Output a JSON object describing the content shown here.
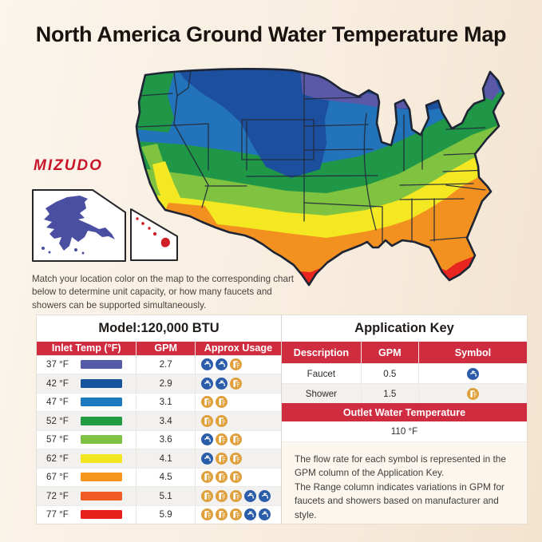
{
  "title": "North America Ground Water Temperature Map",
  "brand": "MIZUDO",
  "intro": "Match your location color on the map to the corresponding chart below to determine unit capacity, or how many faucets and showers can be supported simultaneously.",
  "map": {
    "bands": {
      "purple": "#5b58a8",
      "navy": "#1c4f9e",
      "blue": "#2273ba",
      "green": "#1f9747",
      "lightgreen": "#80c341",
      "yellow": "#f3e822",
      "orange": "#f39120",
      "red": "#e8251f"
    },
    "alaska_fill": "#4a4fa2",
    "hawaii_fill": "#cf2027"
  },
  "colors": {
    "header_red": "#d02c3f",
    "faucet_blue": "#2a5caa",
    "shower_orange": "#dfa03c"
  },
  "capacity_table": {
    "title": "Model:120,000 BTU",
    "columns": [
      "Inlet Temp (°F)",
      "GPM",
      "Approx Usage"
    ],
    "rows": [
      {
        "temp": "37 °F",
        "swatch": "#555ba6",
        "gpm": "2.7",
        "usage": [
          "faucet",
          "faucet",
          "shower"
        ]
      },
      {
        "temp": "42 °F",
        "swatch": "#14549c",
        "gpm": "2.9",
        "usage": [
          "faucet",
          "faucet",
          "shower"
        ]
      },
      {
        "temp": "47 °F",
        "swatch": "#1b79c0",
        "gpm": "3.1",
        "usage": [
          "shower",
          "shower"
        ]
      },
      {
        "temp": "52 °F",
        "swatch": "#219b41",
        "gpm": "3.4",
        "usage": [
          "shower",
          "shower"
        ]
      },
      {
        "temp": "57 °F",
        "swatch": "#7dc242",
        "gpm": "3.6",
        "usage": [
          "faucet",
          "shower",
          "shower"
        ]
      },
      {
        "temp": "62 °F",
        "swatch": "#f2e620",
        "gpm": "4.1",
        "usage": [
          "faucet",
          "shower",
          "shower"
        ]
      },
      {
        "temp": "67 °F",
        "swatch": "#f7941d",
        "gpm": "4.5",
        "usage": [
          "shower",
          "shower",
          "shower"
        ]
      },
      {
        "temp": "72 °F",
        "swatch": "#ee5b24",
        "gpm": "5.1",
        "usage": [
          "shower",
          "shower",
          "shower",
          "faucet",
          "faucet"
        ]
      },
      {
        "temp": "77 °F",
        "swatch": "#e8211d",
        "gpm": "5.9",
        "usage": [
          "shower",
          "shower",
          "shower",
          "faucet",
          "faucet"
        ]
      }
    ]
  },
  "application_key": {
    "title": "Application Key",
    "columns": [
      "Description",
      "GPM",
      "Symbol"
    ],
    "rows": [
      {
        "description": "Faucet",
        "gpm": "0.5",
        "symbol": "faucet"
      },
      {
        "description": "Shower",
        "gpm": "1.5",
        "symbol": "shower"
      }
    ],
    "outlet_banner": "Outlet Water Temperature",
    "outlet_value": "110 °F",
    "note_lines": [
      "The flow rate for each symbol is represented in the GPM column of the Application Key.",
      "The Range column indicates variations in GPM for faucets and showers based on manufacturer and style."
    ]
  }
}
